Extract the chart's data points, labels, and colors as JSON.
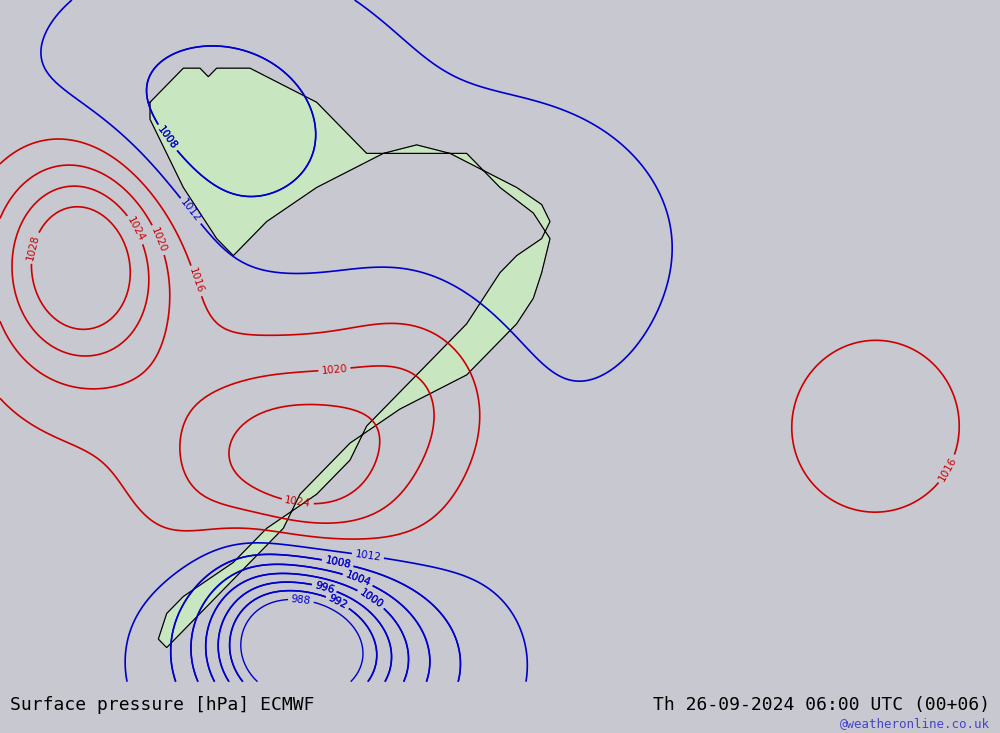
{
  "title_left": "Surface pressure [hPa] ECMWF",
  "title_right": "Th 26-09-2024 06:00 UTC (00+06)",
  "watermark": "@weatheronline.co.uk",
  "background_color": "#d0d0d8",
  "land_color": "#c8e6c0",
  "figure_width": 10.0,
  "figure_height": 7.33,
  "dpi": 100,
  "title_fontsize": 13,
  "watermark_color": "#4444cc",
  "watermark_fontsize": 9
}
